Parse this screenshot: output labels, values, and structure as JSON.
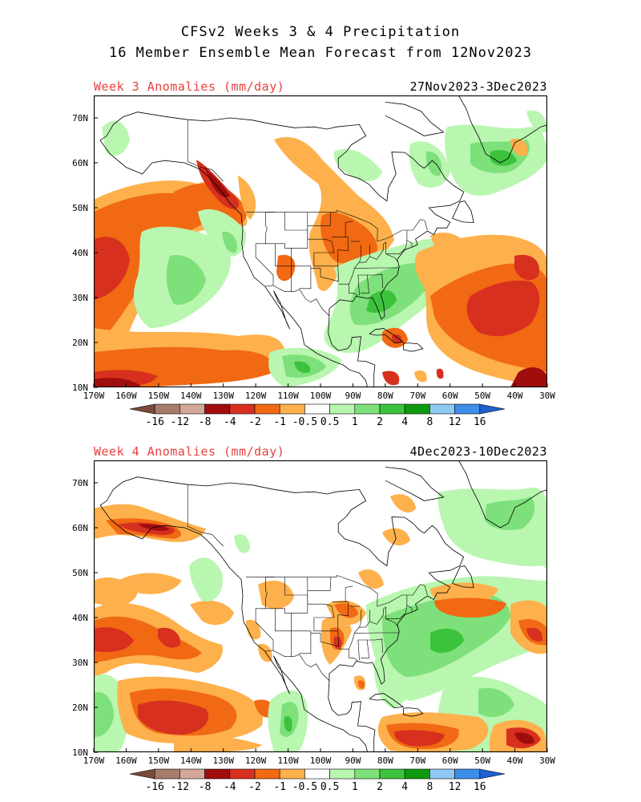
{
  "header": {
    "title_line1": "CFSv2 Weeks 3 & 4 Precipitation",
    "title_line2": "16 Member Ensemble Mean Forecast from 12Nov2023"
  },
  "panels": [
    {
      "label": "Week 3 Anomalies (mm/day)",
      "dates": "27Nov2023-3Dec2023",
      "pattern": "week3"
    },
    {
      "label": "Week 4 Anomalies (mm/day)",
      "dates": "4Dec2023-10Dec2023",
      "pattern": "week4"
    }
  ],
  "axes": {
    "lon_labels": [
      "170W",
      "160W",
      "150W",
      "140W",
      "130W",
      "120W",
      "110W",
      "100W",
      "90W",
      "80W",
      "70W",
      "60W",
      "50W",
      "40W",
      "30W"
    ],
    "lat_labels": [
      "70N",
      "60N",
      "50N",
      "40N",
      "30N",
      "20N",
      "10N"
    ]
  },
  "colorbar": {
    "labels": [
      "-16",
      "-12",
      "-8",
      "-4",
      "-2",
      "-1",
      "-0.5",
      "0.5",
      "1",
      "2",
      "4",
      "8",
      "12",
      "16"
    ],
    "colors": [
      "#7a4a3a",
      "#a67c6a",
      "#d4a79a",
      "#a00d0d",
      "#d7301f",
      "#f16913",
      "#fdb04b",
      "#ffffff",
      "#b9f6b0",
      "#7ee07a",
      "#3cc23c",
      "#0e9a0e",
      "#8ec9f4",
      "#3c8ee8",
      "#1f5fd0"
    ]
  }
}
